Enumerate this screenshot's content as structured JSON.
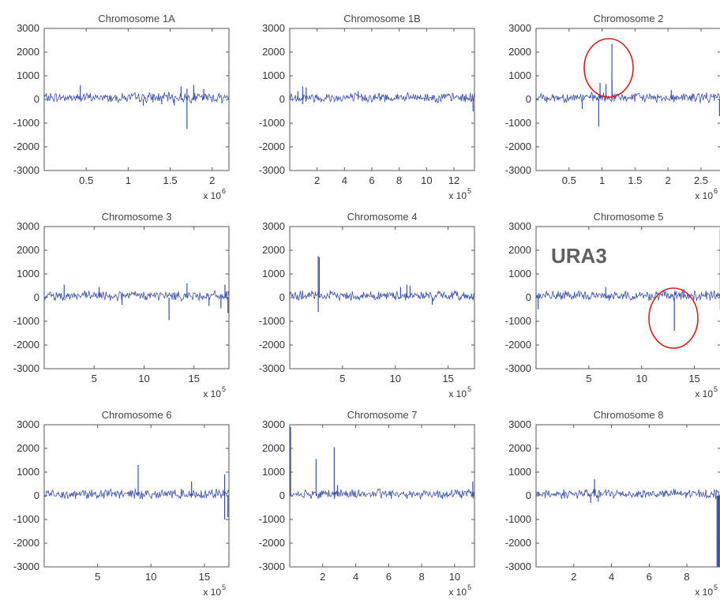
{
  "chart_data": [
    {
      "type": "line",
      "title": "Chromosome 1A",
      "xmax": 2.2,
      "xticks": [
        0.5,
        1,
        1.5,
        2
      ],
      "xtick_labels": [
        "0.5",
        "1",
        "1.5",
        "2"
      ],
      "multiplier": {
        "base": "x 10",
        "exp": "6"
      },
      "ylim": [
        -3000,
        3000
      ],
      "yticks": [
        -3000,
        -2000,
        -1000,
        0,
        1000,
        2000,
        3000
      ],
      "spikes": [
        {
          "x": 0.43,
          "y": 600
        },
        {
          "x": 1.18,
          "y": -260
        },
        {
          "x": 1.4,
          "y": -200
        },
        {
          "x": 1.55,
          "y": -250
        },
        {
          "x": 1.63,
          "y": 550
        },
        {
          "x": 1.7,
          "y": -1250
        },
        {
          "x": 1.7,
          "y": 450
        },
        {
          "x": 1.78,
          "y": 620
        },
        {
          "x": 1.9,
          "y": 450
        }
      ]
    },
    {
      "type": "line",
      "title": "Chromosome 1B",
      "xmax": 13.5,
      "xticks": [
        2,
        4,
        6,
        8,
        10,
        12
      ],
      "xtick_labels": [
        "2",
        "4",
        "6",
        "8",
        "10",
        "12"
      ],
      "multiplier": {
        "base": "x 10",
        "exp": "5"
      },
      "ylim": [
        -3000,
        3000
      ],
      "yticks": [
        -3000,
        -2000,
        -1000,
        0,
        1000,
        2000,
        3000
      ],
      "spikes": [
        {
          "x": 0.6,
          "y": 350
        },
        {
          "x": 0.95,
          "y": 550
        },
        {
          "x": 0.95,
          "y": -200
        },
        {
          "x": 1.2,
          "y": 500
        },
        {
          "x": 5.0,
          "y": 350
        },
        {
          "x": 13.4,
          "y": -500
        }
      ]
    },
    {
      "type": "line",
      "title": "Chromosome 2",
      "xmax": 2.8,
      "xticks": [
        0.5,
        1,
        1.5,
        2,
        2.5
      ],
      "xtick_labels": [
        "0.5",
        "1",
        "1.5",
        "2",
        "2.5"
      ],
      "multiplier": {
        "base": "x 10",
        "exp": "6"
      },
      "ylim": [
        -3000,
        3000
      ],
      "yticks": [
        -3000,
        -2000,
        -1000,
        0,
        1000,
        2000,
        3000
      ],
      "spikes": [
        {
          "x": 0.7,
          "y": -400
        },
        {
          "x": 0.95,
          "y": -1150
        },
        {
          "x": 0.97,
          "y": 700
        },
        {
          "x": 1.06,
          "y": 650
        },
        {
          "x": 1.15,
          "y": 2350
        },
        {
          "x": 1.15,
          "y": 800
        },
        {
          "x": 2.05,
          "y": 400
        },
        {
          "x": 2.78,
          "y": -700
        }
      ]
    },
    {
      "type": "line",
      "title": "Chromosome 3",
      "xmax": 18.5,
      "xticks": [
        5,
        10,
        15
      ],
      "xtick_labels": [
        "5",
        "10",
        "15"
      ],
      "multiplier": {
        "base": "x 10",
        "exp": "5"
      },
      "ylim": [
        -3000,
        3000
      ],
      "yticks": [
        -3000,
        -2000,
        -1000,
        0,
        1000,
        2000,
        3000
      ],
      "spikes": [
        {
          "x": 2.0,
          "y": 550
        },
        {
          "x": 5.5,
          "y": 450
        },
        {
          "x": 7.8,
          "y": -300
        },
        {
          "x": 12.5,
          "y": -950
        },
        {
          "x": 14.3,
          "y": 600
        },
        {
          "x": 16.5,
          "y": -350
        },
        {
          "x": 17.7,
          "y": -450
        },
        {
          "x": 18.1,
          "y": 550
        },
        {
          "x": 18.4,
          "y": -650
        }
      ]
    },
    {
      "type": "line",
      "title": "Chromosome 4",
      "xmax": 17.5,
      "xticks": [
        5,
        10,
        15
      ],
      "xtick_labels": [
        "5",
        "10",
        "15"
      ],
      "multiplier": {
        "base": "x 10",
        "exp": "5"
      },
      "ylim": [
        -3000,
        3000
      ],
      "yticks": [
        -3000,
        -2000,
        -1000,
        0,
        1000,
        2000,
        3000
      ],
      "spikes": [
        {
          "x": 2.7,
          "y": 1750
        },
        {
          "x": 2.7,
          "y": -600
        },
        {
          "x": 2.8,
          "y": 1700
        },
        {
          "x": 10.5,
          "y": 450
        },
        {
          "x": 11.1,
          "y": 550
        },
        {
          "x": 11.4,
          "y": 500
        },
        {
          "x": 13.5,
          "y": -300
        }
      ]
    },
    {
      "type": "line",
      "title": "Chromosome 5",
      "xmax": 17.5,
      "xticks": [
        5,
        10,
        15
      ],
      "xtick_labels": [
        "5",
        "10",
        "15"
      ],
      "multiplier": {
        "base": "x 10",
        "exp": "5"
      },
      "ylim": [
        -3000,
        3000
      ],
      "yticks": [
        -3000,
        -2000,
        -1000,
        0,
        1000,
        2000,
        3000
      ],
      "spikes": [
        {
          "x": 0.2,
          "y": -500
        },
        {
          "x": 6.6,
          "y": 450
        },
        {
          "x": 13.1,
          "y": -1400
        },
        {
          "x": 14.0,
          "y": 350
        },
        {
          "x": 17.45,
          "y": 2900
        },
        {
          "x": 17.45,
          "y": -500
        }
      ],
      "annotation_text": "URA3"
    },
    {
      "type": "line",
      "title": "Chromosome 6",
      "xmax": 17.3,
      "xticks": [
        5,
        10,
        15
      ],
      "xtick_labels": [
        "5",
        "10",
        "15"
      ],
      "multiplier": {
        "base": "x 10",
        "exp": "5"
      },
      "ylim": [
        -3000,
        3000
      ],
      "yticks": [
        -3000,
        -2000,
        -1000,
        0,
        1000,
        2000,
        3000
      ],
      "spikes": [
        {
          "x": 8.8,
          "y": 1300
        },
        {
          "x": 13.8,
          "y": 600
        },
        {
          "x": 16.9,
          "y": 900
        },
        {
          "x": 16.9,
          "y": -1000
        },
        {
          "x": 17.2,
          "y": -900
        }
      ]
    },
    {
      "type": "line",
      "title": "Chromosome 7",
      "xmax": 11.2,
      "xticks": [
        2,
        4,
        6,
        8,
        10
      ],
      "xtick_labels": [
        "2",
        "4",
        "6",
        "8",
        "10"
      ],
      "multiplier": {
        "base": "x 10",
        "exp": "5"
      },
      "ylim": [
        -3000,
        3000
      ],
      "yticks": [
        -3000,
        -2000,
        -1000,
        0,
        1000,
        2000,
        3000
      ],
      "spikes": [
        {
          "x": 0.05,
          "y": 2900
        },
        {
          "x": 1.6,
          "y": 1550
        },
        {
          "x": 2.7,
          "y": 2050
        },
        {
          "x": 2.9,
          "y": 450
        },
        {
          "x": 11.1,
          "y": 600
        }
      ]
    },
    {
      "type": "line",
      "title": "Chromosome 8",
      "xmax": 9.8,
      "xticks": [
        2,
        4,
        6,
        8
      ],
      "xtick_labels": [
        "2",
        "4",
        "6",
        "8"
      ],
      "multiplier": {
        "base": "x 10",
        "exp": "5"
      },
      "ylim": [
        -3000,
        3000
      ],
      "yticks": [
        -3000,
        -2000,
        -1000,
        0,
        1000,
        2000,
        3000
      ],
      "spikes": [
        {
          "x": 2.9,
          "y": -300
        },
        {
          "x": 3.1,
          "y": 700
        },
        {
          "x": 3.3,
          "y": -250
        },
        {
          "x": 9.6,
          "y": -3000
        },
        {
          "x": 9.65,
          "y": -3000
        },
        {
          "x": 9.7,
          "y": -3000
        },
        {
          "x": 9.75,
          "y": -3000
        },
        {
          "x": 9.8,
          "y": 550
        }
      ]
    }
  ],
  "annotations": [
    {
      "panel": 2,
      "shape": "ellipse",
      "color": "#d11f1f"
    },
    {
      "panel": 5,
      "shape": "ellipse",
      "color": "#d11f1f"
    },
    {
      "panel": 5,
      "shape": "text",
      "text": "URA3",
      "color": "#5f5f5f"
    }
  ],
  "colors": {
    "trace": "#3a4ea0",
    "axis": "#555555",
    "annotation": "#d11f1f"
  }
}
